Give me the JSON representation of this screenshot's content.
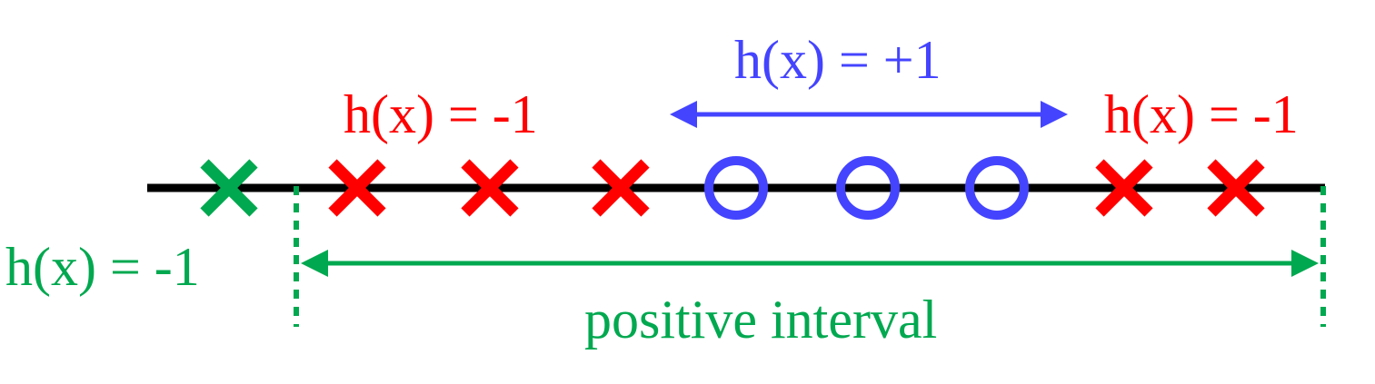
{
  "colors": {
    "axis": "#000000",
    "negative": "#ff0000",
    "positive": "#4444ff",
    "highlight": "#00a84f"
  },
  "labels": {
    "left_negative": "h(x) = -1",
    "center_positive": "h(x) = +1",
    "right_negative": "h(x) = -1",
    "green_negative": "h(x) = -1",
    "interval_caption": "positive interval"
  },
  "points": [
    {
      "index": 1,
      "marker": "cross",
      "class": "green"
    },
    {
      "index": 2,
      "marker": "cross",
      "class": "negative"
    },
    {
      "index": 3,
      "marker": "cross",
      "class": "negative"
    },
    {
      "index": 4,
      "marker": "cross",
      "class": "negative"
    },
    {
      "index": 5,
      "marker": "circle",
      "class": "positive"
    },
    {
      "index": 6,
      "marker": "circle",
      "class": "positive"
    },
    {
      "index": 7,
      "marker": "circle",
      "class": "positive"
    },
    {
      "index": 8,
      "marker": "cross",
      "class": "negative"
    },
    {
      "index": 9,
      "marker": "cross",
      "class": "negative"
    }
  ]
}
